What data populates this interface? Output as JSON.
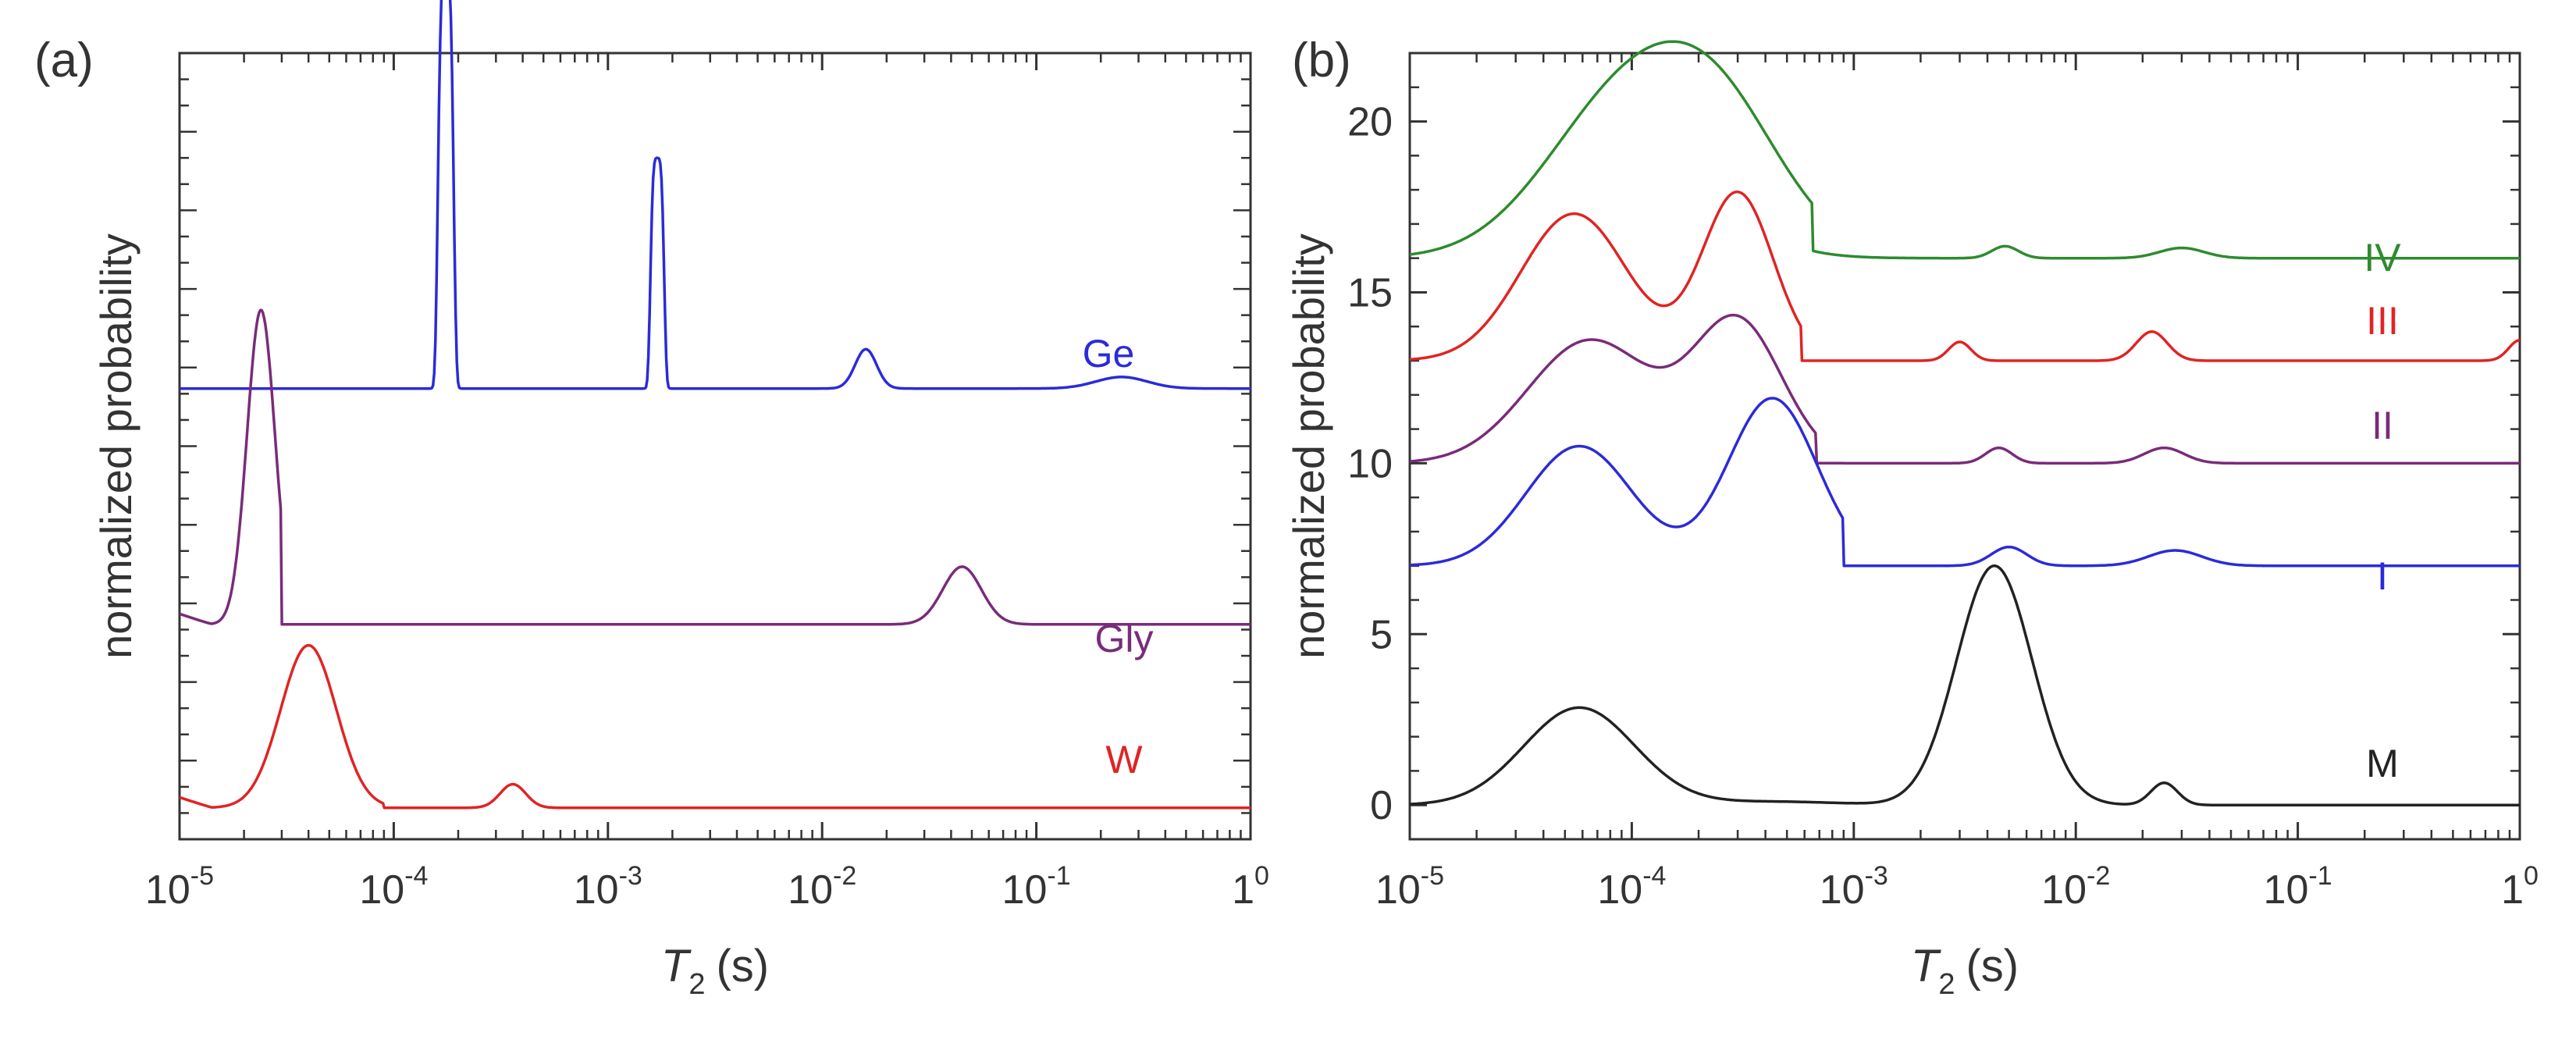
{
  "chart_data": [
    {
      "panel_label": "(a)",
      "type": "line",
      "x_scale": "log",
      "xlim": [
        1e-05,
        1
      ],
      "xlabel": {
        "symbol": "T",
        "subscript": "2",
        "unit": "(s)"
      },
      "ylabel": "normalized probability",
      "yticks_labeled": false,
      "x_tick_labels": [
        {
          "base": "10",
          "exp": "-5",
          "value": 1e-05
        },
        {
          "base": "10",
          "exp": "-4",
          "value": 0.0001
        },
        {
          "base": "10",
          "exp": "-3",
          "value": 0.001
        },
        {
          "base": "10",
          "exp": "-2",
          "value": 0.01
        },
        {
          "base": "10",
          "exp": "-1",
          "value": 0.1
        },
        {
          "base": "1",
          "exp": "0",
          "value": 1
        }
      ],
      "series": [
        {
          "name": "Ge",
          "color": "#2b2bd9",
          "baseline": 8.0,
          "peaks": [
            {
              "t2": 0.000175,
              "height": 8.0,
              "width_dec": 0.04,
              "shape": "rect"
            },
            {
              "t2": 0.0017,
              "height": 4.4,
              "width_dec": 0.035,
              "shape": "rect"
            },
            {
              "t2": 0.016,
              "height": 0.75,
              "width_dec": 0.05
            },
            {
              "t2": 0.25,
              "height": 0.22,
              "width_dec": 0.12
            }
          ]
        },
        {
          "name": "Gly",
          "color": "#7a2b7a",
          "baseline": 3.5,
          "start_value": 3.7,
          "peaks": [
            {
              "t2": 2.4e-05,
              "height": 6.0,
              "width_dec": 0.065,
              "cutoff_right": 3e-05
            },
            {
              "t2": 0.045,
              "height": 1.1,
              "width_dec": 0.09
            }
          ]
        },
        {
          "name": "W",
          "color": "#e02424",
          "baseline": 0.0,
          "start_value": 0.2,
          "peaks": [
            {
              "t2": 4e-05,
              "height": 3.1,
              "width_dec": 0.13,
              "cutoff_right": 9e-05
            },
            {
              "t2": 0.00036,
              "height": 0.45,
              "width_dec": 0.06
            }
          ]
        }
      ]
    },
    {
      "panel_label": "(b)",
      "type": "line",
      "x_scale": "log",
      "xlim": [
        1e-05,
        1
      ],
      "ylim": [
        -1,
        22
      ],
      "xlabel": {
        "symbol": "T",
        "subscript": "2",
        "unit": "(s)"
      },
      "ylabel": "normalized probability",
      "y_ticks": [
        0,
        5,
        10,
        15,
        20
      ],
      "x_tick_labels": [
        {
          "base": "10",
          "exp": "-5",
          "value": 1e-05
        },
        {
          "base": "10",
          "exp": "-4",
          "value": 0.0001
        },
        {
          "base": "10",
          "exp": "-3",
          "value": 0.001
        },
        {
          "base": "10",
          "exp": "-2",
          "value": 0.01
        },
        {
          "base": "10",
          "exp": "-1",
          "value": 0.1
        },
        {
          "base": "1",
          "exp": "0",
          "value": 1
        }
      ],
      "series": [
        {
          "name": "IV",
          "color": "#2e8b2e",
          "baseline": 16,
          "peaks": [
            {
              "t2": 9e-05,
              "height": 4.4,
              "width_dec": 0.35
            },
            {
              "t2": 0.00025,
              "height": 3.6,
              "width_dec": 0.3,
              "cutoff_right": 0.00065
            },
            {
              "t2": 0.0048,
              "height": 0.35,
              "width_dec": 0.06
            },
            {
              "t2": 0.03,
              "height": 0.3,
              "width_dec": 0.1
            }
          ]
        },
        {
          "name": "III",
          "color": "#e02424",
          "baseline": 13,
          "peaks": [
            {
              "t2": 5.5e-05,
              "height": 4.3,
              "width_dec": 0.24
            },
            {
              "t2": 0.0003,
              "height": 4.9,
              "width_dec": 0.16,
              "cutoff_right": 0.00058
            },
            {
              "t2": 0.003,
              "height": 0.55,
              "width_dec": 0.05
            },
            {
              "t2": 0.022,
              "height": 0.85,
              "width_dec": 0.07
            },
            {
              "t2": 1.0,
              "height": 0.6,
              "width_dec": 0.05
            }
          ]
        },
        {
          "name": "II",
          "color": "#7a2b7a",
          "baseline": 10,
          "peaks": [
            {
              "t2": 6.5e-05,
              "height": 3.6,
              "width_dec": 0.28
            },
            {
              "t2": 0.0003,
              "height": 4.1,
              "width_dec": 0.2,
              "cutoff_right": 0.00068
            },
            {
              "t2": 0.0045,
              "height": 0.45,
              "width_dec": 0.06
            },
            {
              "t2": 0.025,
              "height": 0.45,
              "width_dec": 0.09
            }
          ]
        },
        {
          "name": "I",
          "color": "#2b2bd9",
          "baseline": 7,
          "peaks": [
            {
              "t2": 5.8e-05,
              "height": 3.5,
              "width_dec": 0.24
            },
            {
              "t2": 0.00043,
              "height": 4.9,
              "width_dec": 0.2,
              "cutoff_right": 0.0009
            },
            {
              "t2": 0.005,
              "height": 0.55,
              "width_dec": 0.08
            },
            {
              "t2": 0.028,
              "height": 0.45,
              "width_dec": 0.12
            }
          ]
        },
        {
          "name": "M",
          "color": "#222222",
          "baseline": 0,
          "peaks": [
            {
              "t2": 5.8e-05,
              "height": 2.85,
              "width_dec": 0.25
            },
            {
              "t2": 0.00043,
              "height": 0.1,
              "width_dec": 0.3
            },
            {
              "t2": 0.0043,
              "height": 7.0,
              "width_dec": 0.17
            },
            {
              "t2": 0.025,
              "height": 0.65,
              "width_dec": 0.06
            }
          ]
        }
      ]
    }
  ]
}
